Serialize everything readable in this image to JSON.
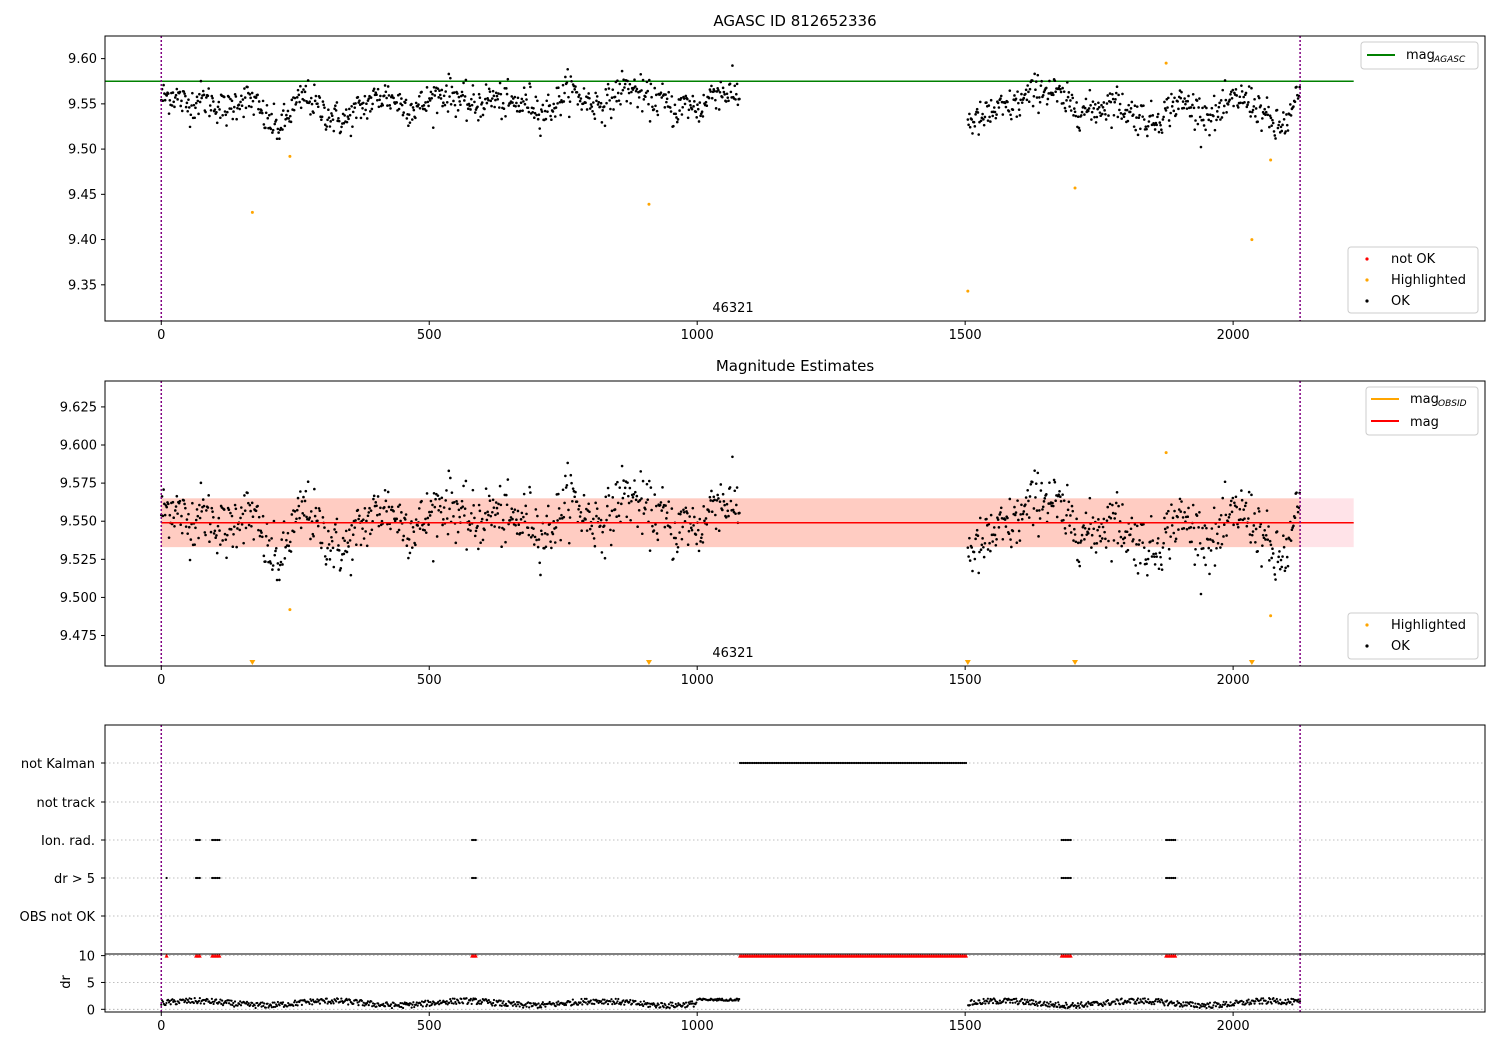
{
  "chart_data": [
    {
      "type": "scatter",
      "title": "AGASC ID 812652336",
      "xlim": [
        -105,
        2470
      ],
      "ylim": [
        9.31,
        9.625
      ],
      "x_ticks": [
        0,
        500,
        1000,
        1500,
        2000
      ],
      "y_ticks": [
        9.35,
        9.4,
        9.45,
        9.5,
        9.55,
        9.6
      ],
      "annotation": "46321",
      "vlines": [
        0,
        2125
      ],
      "hline": {
        "name": "mag",
        "subscript": "AGASC",
        "y": 9.575,
        "x_range": [
          0,
          2225
        ],
        "color": "#008000"
      },
      "legend_top": "top-right",
      "legend_bottom": "bottom-right",
      "series": [
        {
          "name": "not OK",
          "color": "#ff0000",
          "points": []
        },
        {
          "name": "Highlighted",
          "color": "#ffa500",
          "points": [
            [
              170,
              9.43
            ],
            [
              240,
              9.492
            ],
            [
              910,
              9.439
            ],
            [
              1505,
              9.343
            ],
            [
              1705,
              9.457
            ],
            [
              1875,
              9.595
            ],
            [
              2035,
              9.4
            ],
            [
              2070,
              9.488
            ]
          ]
        },
        {
          "name": "OK",
          "color": "#000000",
          "points": []
        }
      ],
      "observations": [
        {
          "x": [
            0,
            1080
          ],
          "baseline": [
            9.557,
            9.56,
            9.548,
            9.556,
            9.55,
            9.542,
            9.556,
            9.553,
            9.532,
            9.522,
            9.545,
            9.56,
            9.545,
            9.535,
            9.531,
            9.544,
            9.553,
            9.56,
            9.552,
            9.545,
            9.55,
            9.56,
            9.562,
            9.551,
            9.548,
            9.557,
            9.552,
            9.549,
            9.553,
            9.54,
            9.55,
            9.568,
            9.555,
            9.55,
            9.551,
            9.568,
            9.565,
            9.555,
            9.555,
            9.542,
            9.55,
            9.543,
            9.565,
            9.562,
            9.56
          ]
        },
        {
          "x": [
            1505,
            2125
          ],
          "baseline": [
            9.531,
            9.532,
            9.541,
            9.545,
            9.549,
            9.56,
            9.567,
            9.563,
            9.551,
            9.545,
            9.542,
            9.548,
            9.552,
            9.542,
            9.536,
            9.53,
            9.54,
            9.552,
            9.548,
            9.54,
            9.536,
            9.547,
            9.557,
            9.552,
            9.54,
            9.523,
            9.53,
            9.565
          ]
        }
      ]
    },
    {
      "type": "scatter",
      "title": "Magnitude Estimates",
      "xlim": [
        -105,
        2470
      ],
      "ylim": [
        9.455,
        9.642
      ],
      "x_ticks": [
        0,
        500,
        1000,
        1500,
        2000
      ],
      "y_ticks": [
        9.475,
        9.5,
        9.525,
        9.55,
        9.575,
        9.6,
        9.625
      ],
      "annotation": "46321",
      "vlines": [
        0,
        2125
      ],
      "hline_mag": {
        "name": "mag",
        "y": 9.549,
        "x_range": [
          0,
          2225
        ],
        "color": "#ff0000"
      },
      "hline_obsid": {
        "name": "mag",
        "subscript": "OBSID",
        "y": 9.549,
        "x_range": [
          0,
          2125
        ],
        "color": "#ffa500"
      },
      "band_mag": {
        "y": [
          9.533,
          9.565
        ],
        "x_range": [
          0,
          2225
        ],
        "color": "#ffc0cb"
      },
      "band_obsid": {
        "y": [
          9.533,
          9.565
        ],
        "x_range": [
          0,
          2125
        ],
        "color": "#ffa07a"
      },
      "legend_top": "top-right",
      "legend_bottom": "bottom-right",
      "series": [
        {
          "name": "Highlighted",
          "color": "#ffa500",
          "points": [
            [
              240,
              9.492
            ],
            [
              1875,
              9.595
            ],
            [
              2070,
              9.488
            ]
          ]
        },
        {
          "name": "OK",
          "color": "#000000",
          "points": []
        }
      ],
      "off_scale_markers": [
        170,
        910,
        1505,
        1705,
        2035
      ]
    },
    {
      "type": "scatter",
      "categories": [
        "OBS not OK",
        "dr > 5",
        "Ion. rad.",
        "not track",
        "not Kalman"
      ],
      "xlim": [
        -105,
        2470
      ],
      "x_ticks": [
        0,
        500,
        1000,
        1500,
        2000
      ],
      "vlines": [
        0,
        2125
      ],
      "flags": {
        "not Kalman": [
          [
            1080,
            1505
          ]
        ],
        "not track": [],
        "Ion. rad.": [
          [
            65,
            75
          ],
          [
            95,
            110
          ],
          [
            580,
            590
          ],
          [
            1680,
            1700
          ],
          [
            1875,
            1895
          ]
        ],
        "dr > 5": [
          [
            10,
            12
          ],
          [
            65,
            75
          ],
          [
            95,
            110
          ],
          [
            580,
            590
          ],
          [
            1680,
            1700
          ],
          [
            1875,
            1895
          ]
        ],
        "OBS not OK": []
      }
    },
    {
      "type": "scatter",
      "ylabel": "dr",
      "xlim": [
        -105,
        2470
      ],
      "ylim": [
        -0.5,
        10.3
      ],
      "y_ticks": [
        0,
        5,
        10
      ],
      "x_ticks": [
        0,
        500,
        1000,
        1500,
        2000
      ],
      "vlines": [
        0,
        2125
      ],
      "threshold_line": 5,
      "capped_segments": [
        [
          10,
          12
        ],
        [
          65,
          75
        ],
        [
          95,
          110
        ],
        [
          580,
          590
        ],
        [
          1080,
          1505
        ],
        [
          1680,
          1700
        ],
        [
          1875,
          1895
        ]
      ],
      "gap": [
        1080,
        1505
      ]
    }
  ]
}
